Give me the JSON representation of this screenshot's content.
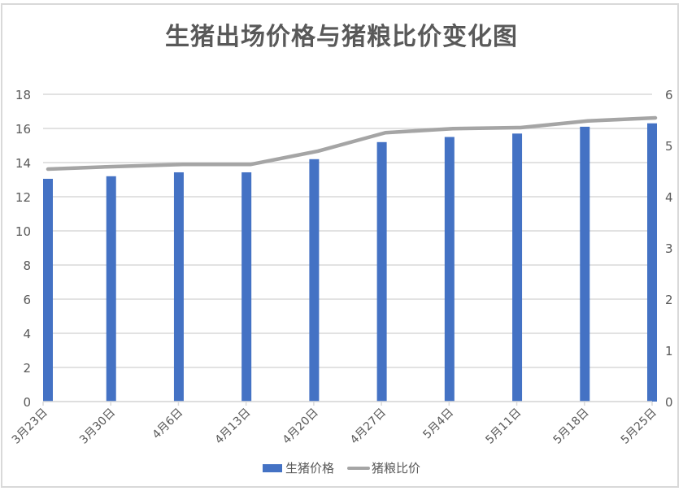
{
  "title": "生猪出场价格与猪粮比价变化图",
  "legend": [
    {
      "label": "生猪价格",
      "type": "bar",
      "color": "#4472c4"
    },
    {
      "label": "猪粮比价",
      "type": "line",
      "color": "#a5a5a5"
    }
  ],
  "chart_data": {
    "type": "bar+line",
    "title": "生猪出场价格与猪粮比价变化图",
    "categories": [
      "3月23日",
      "3月30日",
      "4月6日",
      "4月13日",
      "4月20日",
      "4月27日",
      "5月4日",
      "5月11日",
      "5月18日",
      "5月25日"
    ],
    "series": [
      {
        "name": "生猪价格",
        "type": "bar",
        "axis": "left",
        "color": "#4472c4",
        "values": [
          13.05,
          13.2,
          13.43,
          13.43,
          14.2,
          15.2,
          15.5,
          15.7,
          16.1,
          16.3
        ]
      },
      {
        "name": "猪粮比价",
        "type": "line",
        "axis": "right",
        "color": "#a5a5a5",
        "values": [
          4.54,
          4.59,
          4.63,
          4.63,
          4.89,
          5.25,
          5.33,
          5.35,
          5.48,
          5.54
        ]
      }
    ],
    "y_left": {
      "min": 0,
      "max": 18,
      "step": 2,
      "ticks": [
        "0",
        "2",
        "4",
        "6",
        "8",
        "10",
        "12",
        "14",
        "16",
        "18"
      ]
    },
    "y_right": {
      "min": 0,
      "max": 6,
      "step": 1,
      "ticks": [
        "0",
        "1",
        "2",
        "3",
        "4",
        "5",
        "6"
      ]
    },
    "xlabel": "",
    "ylabel": "",
    "grid": true,
    "legend_position": "bottom"
  }
}
